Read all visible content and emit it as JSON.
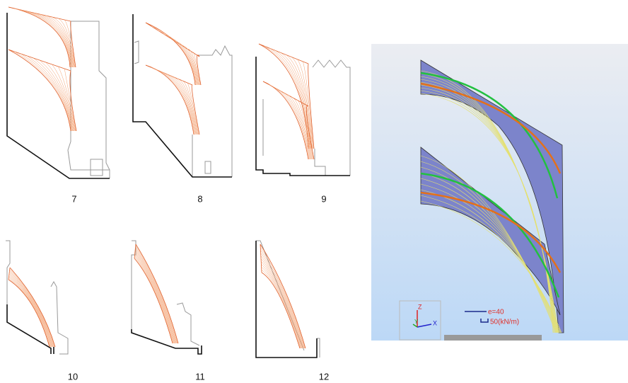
{
  "figures": [
    {
      "label": "7"
    },
    {
      "label": "8"
    },
    {
      "label": "9"
    },
    {
      "label": "10"
    },
    {
      "label": "11"
    },
    {
      "label": "12"
    }
  ],
  "model_view": {
    "axes": {
      "z": "Z",
      "y": "Y",
      "x": "X"
    },
    "legend": {
      "eccentricity": "e=40",
      "scale": "50(kN/m)"
    }
  }
}
